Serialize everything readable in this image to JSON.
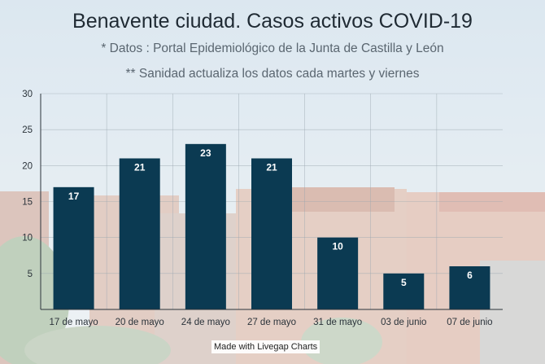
{
  "chart_data": {
    "type": "bar",
    "title": "Benavente ciudad. Casos activos COVID-19",
    "subtitles": [
      "* Datos : Portal Epidemiológico de la Junta de Castilla y León",
      "** Sanidad actualiza los datos cada martes y viernes"
    ],
    "categories": [
      "17 de mayo",
      "20 de mayo",
      "24 de mayo",
      "27 de mayo",
      "31 de mayo",
      "03 de junio",
      "07 de junio"
    ],
    "values": [
      17,
      21,
      23,
      21,
      10,
      5,
      6
    ],
    "ylim": [
      0,
      30
    ],
    "yticks": [
      5,
      10,
      15,
      20,
      25,
      30
    ],
    "xlabel": "",
    "ylabel": "",
    "grid": true,
    "bar_color": "#0b3a52",
    "label_color": "#ffffff"
  },
  "credit": "Made with Livegap Charts"
}
